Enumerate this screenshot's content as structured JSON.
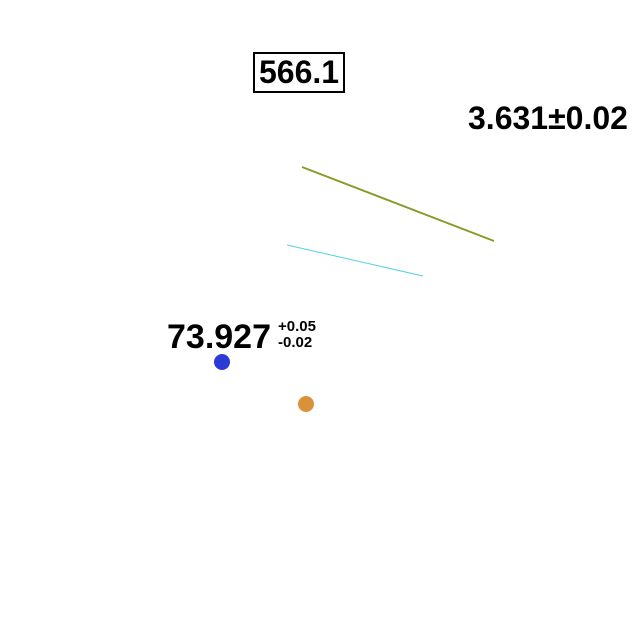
{
  "labels": {
    "boxed_value": "566.1",
    "plain_value": "3.631±0.02",
    "uncertainty_value": {
      "value": "73.927",
      "upper": "+0.05",
      "lower": "-0.02"
    }
  },
  "colors": {
    "olive_line": "#8a9a2a",
    "cyan_line": "#4fd2e6",
    "blue_marker": "#2a3bd6",
    "orange_marker": "#d9923a"
  }
}
